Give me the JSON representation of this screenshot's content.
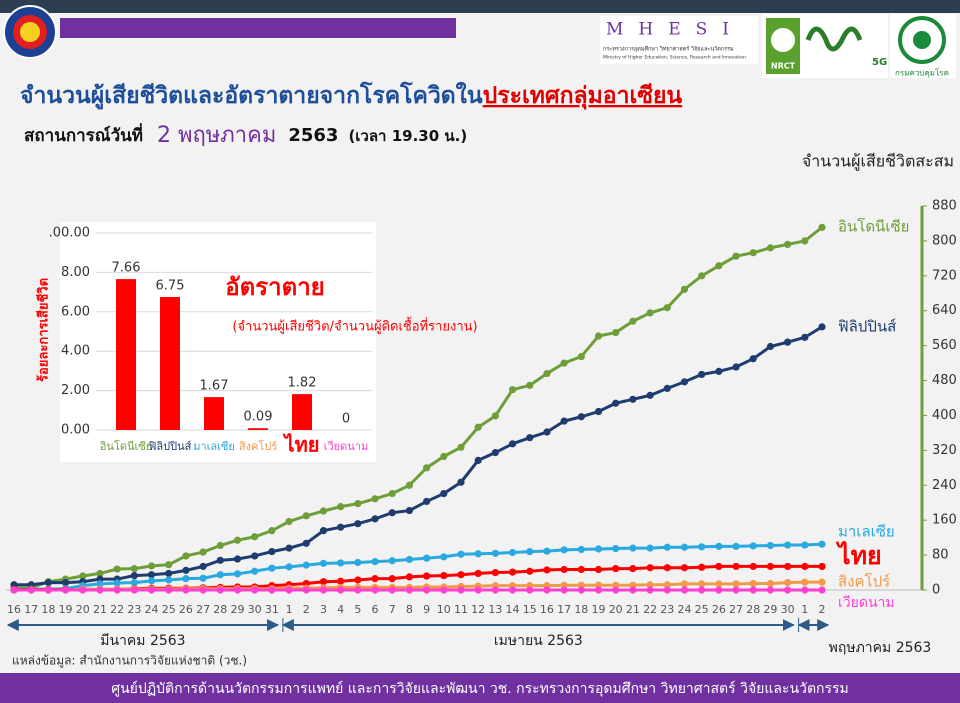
{
  "header": {
    "title": "จำนวนผู้เสียชีวิตและอัตราตายจากโรคโควิดใน",
    "title_highlight": "ประเทศกลุ่มอาเซียน",
    "situation_label": "สถานการณ์วันที่",
    "date": "2 พฤษภาคม",
    "year": "2563",
    "time": "(เวลา 19.30 น.)",
    "logo_mhesi": "MHESI",
    "logo_mhesi_th": "กระทรวงการอุดมศึกษา วิทยาศาสตร์ วิจัยและนวัตกรรม",
    "logo_mhesi_en": "Ministry of Higher Education, Science, Research and Innovation",
    "logo_nrct": "NRCT",
    "logo_5g": "5G",
    "logo_ddc": "กรมควบคุมโรค"
  },
  "chart_data": [
    {
      "type": "line",
      "y_axis_title": "จำนวนผู้เสียชีวิตสะสม",
      "categories": [
        "16",
        "17",
        "18",
        "19",
        "20",
        "21",
        "22",
        "23",
        "24",
        "25",
        "26",
        "27",
        "28",
        "29",
        "30",
        "31",
        "1",
        "2",
        "3",
        "4",
        "5",
        "6",
        "7",
        "8",
        "9",
        "10",
        "11",
        "12",
        "13",
        "14",
        "15",
        "16",
        "17",
        "18",
        "19",
        "20",
        "21",
        "22",
        "23",
        "24",
        "25",
        "26",
        "27",
        "28",
        "29",
        "30",
        "1",
        "2"
      ],
      "month_labels": [
        "มีนาคม 2563",
        "เมษายน 2563",
        "พฤษภาคม 2563"
      ],
      "ylim": [
        0,
        880
      ],
      "yticks": [
        0,
        80,
        160,
        240,
        320,
        400,
        480,
        560,
        640,
        720,
        800,
        880
      ],
      "series": [
        {
          "name": "อินโดนีเซีย",
          "color": "#6d9e3a",
          "values": [
            5,
            5,
            19,
            25,
            32,
            38,
            48,
            49,
            55,
            58,
            78,
            87,
            102,
            114,
            122,
            136,
            157,
            170,
            181,
            191,
            198,
            209,
            221,
            240,
            280,
            306,
            327,
            373,
            399,
            459,
            469,
            496,
            520,
            535,
            582,
            590,
            616,
            635,
            647,
            689,
            720,
            743,
            765,
            773,
            784,
            792,
            800,
            831
          ]
        },
        {
          "name": "ฟิลิปปินส์",
          "color": "#1f3c6e",
          "values": [
            12,
            12,
            17,
            17,
            19,
            25,
            25,
            33,
            35,
            38,
            45,
            54,
            68,
            71,
            78,
            88,
            96,
            107,
            136,
            144,
            152,
            163,
            177,
            182,
            203,
            221,
            247,
            297,
            315,
            335,
            349,
            362,
            387,
            397,
            409,
            428,
            437,
            446,
            462,
            477,
            494,
            501,
            511,
            530,
            558,
            568,
            579,
            603
          ]
        },
        {
          "name": "มาเลเซีย",
          "color": "#2aa9e0",
          "values": [
            0,
            2,
            2,
            3,
            10,
            14,
            16,
            17,
            21,
            23,
            26,
            27,
            35,
            37,
            43,
            50,
            53,
            57,
            61,
            62,
            63,
            65,
            67,
            70,
            73,
            76,
            82,
            83,
            84,
            86,
            88,
            89,
            92,
            93,
            94,
            95,
            96,
            96,
            98,
            98,
            99,
            100,
            100,
            101,
            102,
            103,
            103,
            105
          ]
        },
        {
          "name": "ไทย",
          "color": "#ff0000",
          "values": [
            1,
            1,
            1,
            1,
            1,
            1,
            1,
            3,
            4,
            4,
            4,
            5,
            6,
            7,
            7,
            10,
            12,
            15,
            19,
            20,
            23,
            26,
            26,
            30,
            32,
            33,
            35,
            38,
            40,
            41,
            43,
            46,
            47,
            47,
            47,
            49,
            49,
            51,
            51,
            51,
            52,
            54,
            54,
            54,
            54,
            54,
            54,
            54
          ]
        },
        {
          "name": "สิงคโปร์",
          "color": "#f29a4a",
          "values": [
            0,
            0,
            0,
            0,
            2,
            2,
            2,
            2,
            2,
            2,
            3,
            3,
            3,
            3,
            3,
            3,
            4,
            4,
            5,
            6,
            6,
            6,
            6,
            6,
            7,
            7,
            8,
            9,
            10,
            10,
            10,
            10,
            11,
            11,
            11,
            11,
            11,
            12,
            12,
            14,
            14,
            14,
            14,
            15,
            15,
            17,
            18,
            18
          ]
        },
        {
          "name": "เวียดนาม",
          "color": "#ff3fd0",
          "values": [
            0,
            0,
            0,
            0,
            0,
            0,
            0,
            0,
            0,
            0,
            0,
            0,
            0,
            0,
            0,
            0,
            0,
            0,
            0,
            0,
            0,
            0,
            0,
            0,
            0,
            0,
            0,
            0,
            0,
            0,
            0,
            0,
            0,
            0,
            0,
            0,
            0,
            0,
            0,
            0,
            0,
            0,
            0,
            0,
            0,
            0,
            0,
            0
          ]
        }
      ]
    },
    {
      "type": "bar",
      "title": "อัตราตาย",
      "subtitle": "(จำนวนผู้เสียชีวิต/จำนวนผู้ติดเชื้อที่รายงาน)",
      "y_axis_title": "ร้อยละการเสียชีวิต",
      "categories": [
        "อินโดนีเซีย",
        "ฟิลิปปินส์",
        "มาเลเซีย",
        "สิงคโปร์",
        "ไทย",
        "เวียดนาม"
      ],
      "category_colors": [
        "#6d9e3a",
        "#1f3c6e",
        "#2aa9e0",
        "#f29a4a",
        "#ff0000",
        "#ff3fd0"
      ],
      "values": [
        7.66,
        6.75,
        1.67,
        0.09,
        1.82,
        0
      ],
      "color": "#ff0000",
      "ylim": [
        0,
        10
      ],
      "yticks": [
        {
          "value": 0,
          "label": "0.00"
        },
        {
          "value": 2,
          "label": "2.00"
        },
        {
          "value": 4,
          "label": "4.00"
        },
        {
          "value": 6,
          "label": "6.00"
        },
        {
          "value": 8,
          "label": "8.00"
        },
        {
          "value": 10,
          "label": ".00.00"
        }
      ],
      "grid": true
    }
  ],
  "source": "แหล่งข้อมูล: สำนักงานการวิจัยแห่งชาติ (วช.)",
  "footer": "ศูนย์ปฏิบัติการด้านนวัตกรรมการแพทย์ และการวิจัยและพัฒนา วช.   กระทรวงการอุดมศึกษา วิทยาศาสตร์ วิจัยและนวัตกรรม"
}
